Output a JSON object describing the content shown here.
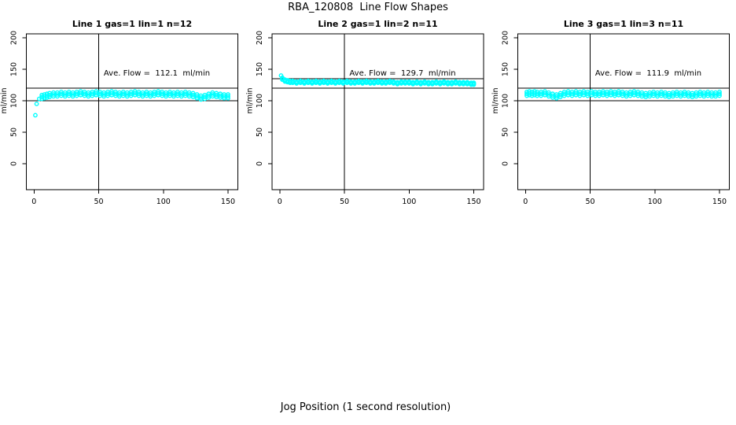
{
  "page": {
    "title": "RBA_120808  Line Flow Shapes",
    "xlabel": "Jog Position (1 second resolution)"
  },
  "colors": {
    "data_marker": "#00FFFF",
    "axis": "#000000",
    "background": "#FFFFFF"
  },
  "chart_data": {
    "type": "scatter",
    "marker": "open-circle",
    "ylabel": "ml/min",
    "x_ticks": [
      0,
      50,
      100,
      150
    ],
    "y_ticks": [
      0,
      50,
      100,
      150,
      200
    ],
    "xlim": [
      0,
      155
    ],
    "ylim": [
      -40,
      205
    ],
    "grid": false,
    "panels": [
      {
        "title": "Line 1 gas=1 lin=1 n=12",
        "n": 12,
        "ave_flow": 112.1,
        "ave_flow_label": "Ave. Flow =  112.1  ml/min",
        "ref_lines_h": [
          120,
          100
        ],
        "ref_line_v": 50,
        "band_halfwidth": 3,
        "points": [
          [
            1,
            77
          ],
          [
            2,
            95
          ],
          [
            4,
            103
          ],
          [
            6,
            106
          ],
          [
            8,
            107
          ],
          [
            10,
            108
          ],
          [
            12,
            109
          ],
          [
            15,
            110
          ],
          [
            18,
            110
          ],
          [
            21,
            111
          ],
          [
            24,
            110
          ],
          [
            27,
            111
          ],
          [
            30,
            110
          ],
          [
            33,
            111
          ],
          [
            36,
            112
          ],
          [
            39,
            111
          ],
          [
            42,
            110
          ],
          [
            45,
            111
          ],
          [
            48,
            112
          ],
          [
            51,
            111
          ],
          [
            54,
            110
          ],
          [
            57,
            111
          ],
          [
            60,
            112
          ],
          [
            63,
            111
          ],
          [
            66,
            110
          ],
          [
            69,
            111
          ],
          [
            72,
            110
          ],
          [
            75,
            111
          ],
          [
            78,
            112
          ],
          [
            81,
            111
          ],
          [
            84,
            110
          ],
          [
            87,
            111
          ],
          [
            90,
            110
          ],
          [
            93,
            111
          ],
          [
            96,
            112
          ],
          [
            99,
            111
          ],
          [
            102,
            110
          ],
          [
            105,
            111
          ],
          [
            108,
            110
          ],
          [
            111,
            111
          ],
          [
            114,
            110
          ],
          [
            117,
            111
          ],
          [
            120,
            110
          ],
          [
            123,
            109
          ],
          [
            126,
            107
          ],
          [
            129,
            105
          ],
          [
            132,
            106
          ],
          [
            135,
            108
          ],
          [
            138,
            110
          ],
          [
            141,
            109
          ],
          [
            144,
            108
          ],
          [
            147,
            107
          ],
          [
            150,
            107
          ]
        ]
      },
      {
        "title": "Line 2 gas=1 lin=2 n=11",
        "n": 11,
        "ave_flow": 129.7,
        "ave_flow_label": "Ave. Flow =  129.7  ml/min",
        "ref_lines_h": [
          135,
          120
        ],
        "ref_line_v": 50,
        "band_halfwidth": 1.5,
        "points": [
          [
            1,
            140
          ],
          [
            2,
            135
          ],
          [
            4,
            132
          ],
          [
            6,
            131
          ],
          [
            8,
            130
          ],
          [
            10,
            130
          ],
          [
            13,
            129
          ],
          [
            16,
            130
          ],
          [
            19,
            129
          ],
          [
            22,
            130
          ],
          [
            25,
            129
          ],
          [
            28,
            130
          ],
          [
            31,
            129
          ],
          [
            34,
            130
          ],
          [
            37,
            129
          ],
          [
            40,
            130
          ],
          [
            43,
            129
          ],
          [
            46,
            130
          ],
          [
            49,
            129
          ],
          [
            52,
            130
          ],
          [
            55,
            129
          ],
          [
            58,
            129
          ],
          [
            61,
            130
          ],
          [
            64,
            129
          ],
          [
            67,
            130
          ],
          [
            70,
            129
          ],
          [
            73,
            129
          ],
          [
            76,
            130
          ],
          [
            79,
            129
          ],
          [
            82,
            129
          ],
          [
            85,
            130
          ],
          [
            88,
            129
          ],
          [
            91,
            128
          ],
          [
            94,
            129
          ],
          [
            97,
            129
          ],
          [
            100,
            129
          ],
          [
            103,
            128
          ],
          [
            106,
            129
          ],
          [
            109,
            128
          ],
          [
            112,
            129
          ],
          [
            115,
            128
          ],
          [
            118,
            128
          ],
          [
            121,
            129
          ],
          [
            124,
            128
          ],
          [
            127,
            129
          ],
          [
            130,
            128
          ],
          [
            133,
            128
          ],
          [
            136,
            129
          ],
          [
            139,
            128
          ],
          [
            142,
            128
          ],
          [
            145,
            128
          ],
          [
            148,
            127
          ],
          [
            150,
            127
          ]
        ]
      },
      {
        "title": "Line 3 gas=1 lin=3 n=11",
        "n": 11,
        "ave_flow": 111.9,
        "ave_flow_label": "Ave. Flow =  111.9  ml/min",
        "ref_lines_h": [
          120,
          100
        ],
        "ref_line_v": 50,
        "band_halfwidth": 3,
        "points": [
          [
            1,
            111
          ],
          [
            3,
            112
          ],
          [
            5,
            111
          ],
          [
            7,
            112
          ],
          [
            9,
            111
          ],
          [
            12,
            111
          ],
          [
            15,
            112
          ],
          [
            18,
            110
          ],
          [
            21,
            108
          ],
          [
            24,
            107
          ],
          [
            27,
            109
          ],
          [
            30,
            111
          ],
          [
            33,
            112
          ],
          [
            36,
            111
          ],
          [
            39,
            112
          ],
          [
            42,
            111
          ],
          [
            45,
            112
          ],
          [
            48,
            111
          ],
          [
            51,
            112
          ],
          [
            54,
            111
          ],
          [
            57,
            111
          ],
          [
            60,
            112
          ],
          [
            63,
            111
          ],
          [
            66,
            112
          ],
          [
            69,
            111
          ],
          [
            72,
            112
          ],
          [
            75,
            111
          ],
          [
            78,
            110
          ],
          [
            81,
            111
          ],
          [
            84,
            112
          ],
          [
            87,
            111
          ],
          [
            90,
            110
          ],
          [
            93,
            109
          ],
          [
            96,
            110
          ],
          [
            99,
            111
          ],
          [
            102,
            110
          ],
          [
            105,
            111
          ],
          [
            108,
            110
          ],
          [
            111,
            109
          ],
          [
            114,
            110
          ],
          [
            117,
            111
          ],
          [
            120,
            110
          ],
          [
            123,
            111
          ],
          [
            126,
            110
          ],
          [
            129,
            109
          ],
          [
            132,
            110
          ],
          [
            135,
            111
          ],
          [
            138,
            110
          ],
          [
            141,
            111
          ],
          [
            144,
            110
          ],
          [
            147,
            110
          ],
          [
            150,
            111
          ]
        ]
      }
    ]
  }
}
